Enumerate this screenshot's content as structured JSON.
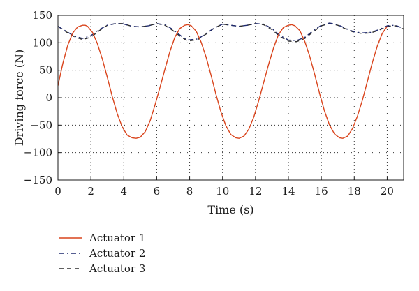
{
  "chart_data": {
    "type": "line",
    "xlabel": "Time (s)",
    "ylabel": "Driving force (N)",
    "xlim": [
      0,
      21
    ],
    "ylim": [
      -150,
      150
    ],
    "xticks": [
      0,
      2,
      4,
      6,
      8,
      10,
      12,
      14,
      16,
      18,
      20
    ],
    "yticks": [
      -150,
      -100,
      -50,
      0,
      50,
      100,
      150
    ],
    "grid": "dotted",
    "legend_position": "bottom-left, below plot",
    "series": [
      {
        "name": "Actuator 1",
        "color": "#d9441c",
        "style": "solid",
        "x": [
          0,
          0.3,
          0.6,
          0.9,
          1.2,
          1.5,
          1.65,
          1.8,
          2.1,
          2.4,
          2.7,
          3.0,
          3.3,
          3.6,
          3.9,
          4.2,
          4.5,
          4.75,
          5.0,
          5.3,
          5.6,
          5.9,
          6.2,
          6.5,
          6.8,
          7.1,
          7.4,
          7.7,
          7.9,
          8.1,
          8.4,
          8.7,
          9.0,
          9.3,
          9.6,
          9.9,
          10.2,
          10.5,
          10.8,
          11.0,
          11.3,
          11.6,
          11.9,
          12.2,
          12.5,
          12.8,
          13.1,
          13.4,
          13.7,
          14.0,
          14.2,
          14.4,
          14.7,
          15.0,
          15.3,
          15.6,
          15.9,
          16.2,
          16.5,
          16.8,
          17.1,
          17.3,
          17.6,
          17.9,
          18.2,
          18.5,
          18.8,
          19.1,
          19.4,
          19.7,
          20.0
        ],
        "y": [
          22,
          63,
          96,
          118,
          129,
          132,
          132,
          130,
          119,
          98,
          70,
          37,
          2,
          -29,
          -53,
          -68,
          -73,
          -74,
          -72,
          -62,
          -42,
          -13,
          19,
          52,
          84,
          110,
          126,
          132,
          133,
          131,
          121,
          101,
          74,
          41,
          6,
          -26,
          -51,
          -67,
          -73,
          -74,
          -70,
          -57,
          -35,
          -5,
          28,
          61,
          91,
          115,
          128,
          132,
          133,
          131,
          122,
          102,
          75,
          42,
          7,
          -25,
          -50,
          -66,
          -73,
          -74,
          -70,
          -56,
          -33,
          -4,
          30,
          64,
          94,
          117,
          130
        ]
      },
      {
        "name": "Actuator 2",
        "color": "#1f2a6e",
        "style": "dashdot",
        "x": [
          0,
          0.5,
          1.0,
          1.5,
          2.0,
          2.5,
          3.0,
          3.5,
          3.9,
          4.5,
          5.0,
          5.5,
          6.0,
          6.5,
          7.0,
          7.5,
          7.9,
          8.5,
          9.0,
          9.5,
          10.0,
          10.5,
          11.0,
          11.5,
          12.0,
          12.5,
          13.0,
          13.5,
          14.0,
          14.5,
          15.0,
          15.5,
          16.0,
          16.5,
          17.0,
          17.5,
          18.0,
          18.5,
          19.0,
          19.5,
          20.0,
          20.5,
          21.0
        ],
        "y": [
          130,
          121,
          112,
          108,
          113,
          124,
          132,
          135,
          135,
          130,
          129,
          131,
          135,
          133,
          124,
          112,
          105,
          107,
          117,
          127,
          134,
          132,
          130,
          132,
          135,
          134,
          126,
          113,
          105,
          104,
          110,
          122,
          132,
          136,
          133,
          126,
          120,
          118,
          119,
          124,
          131,
          132,
          126
        ]
      },
      {
        "name": "Actuator 3",
        "color": "#2b2b2b",
        "style": "dashed",
        "x": [
          0,
          0.5,
          1.0,
          1.5,
          2.0,
          2.5,
          3.0,
          3.5,
          3.9,
          4.5,
          5.0,
          5.5,
          6.0,
          6.5,
          7.0,
          7.5,
          7.9,
          8.5,
          9.0,
          9.5,
          10.0,
          10.5,
          11.0,
          11.5,
          12.0,
          12.5,
          13.0,
          13.5,
          14.0,
          14.5,
          15.0,
          15.5,
          16.0,
          16.5,
          17.0,
          17.5,
          18.0,
          18.5,
          19.0,
          19.5,
          20.0,
          20.5,
          21.0
        ],
        "y": [
          130,
          120,
          111,
          106,
          110,
          122,
          132,
          135,
          135,
          130,
          129,
          131,
          135,
          132,
          122,
          110,
          103,
          106,
          116,
          127,
          134,
          132,
          130,
          132,
          135,
          133,
          124,
          111,
          103,
          102,
          108,
          120,
          131,
          135,
          132,
          125,
          119,
          117,
          118,
          123,
          130,
          131,
          125
        ]
      }
    ]
  }
}
